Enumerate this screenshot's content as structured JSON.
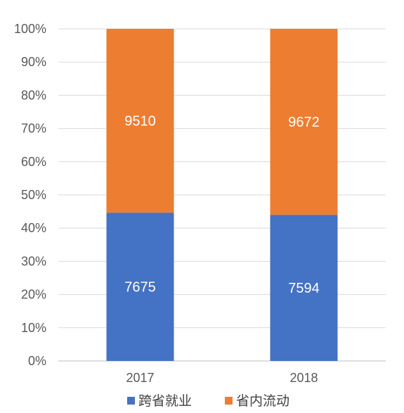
{
  "chart_data": {
    "type": "bar",
    "stacked": "percent",
    "categories": [
      "2017",
      "2018"
    ],
    "series": [
      {
        "name": "跨省就业",
        "values": [
          7675,
          7594
        ],
        "color": "#4472C4"
      },
      {
        "name": "省内流动",
        "values": [
          9510,
          9672
        ],
        "color": "#ED7D31"
      }
    ],
    "yticks": [
      "0%",
      "10%",
      "20%",
      "30%",
      "40%",
      "50%",
      "60%",
      "70%",
      "80%",
      "90%",
      "100%"
    ],
    "ylim": [
      0,
      100
    ],
    "grid": true,
    "legend": "bottom"
  }
}
